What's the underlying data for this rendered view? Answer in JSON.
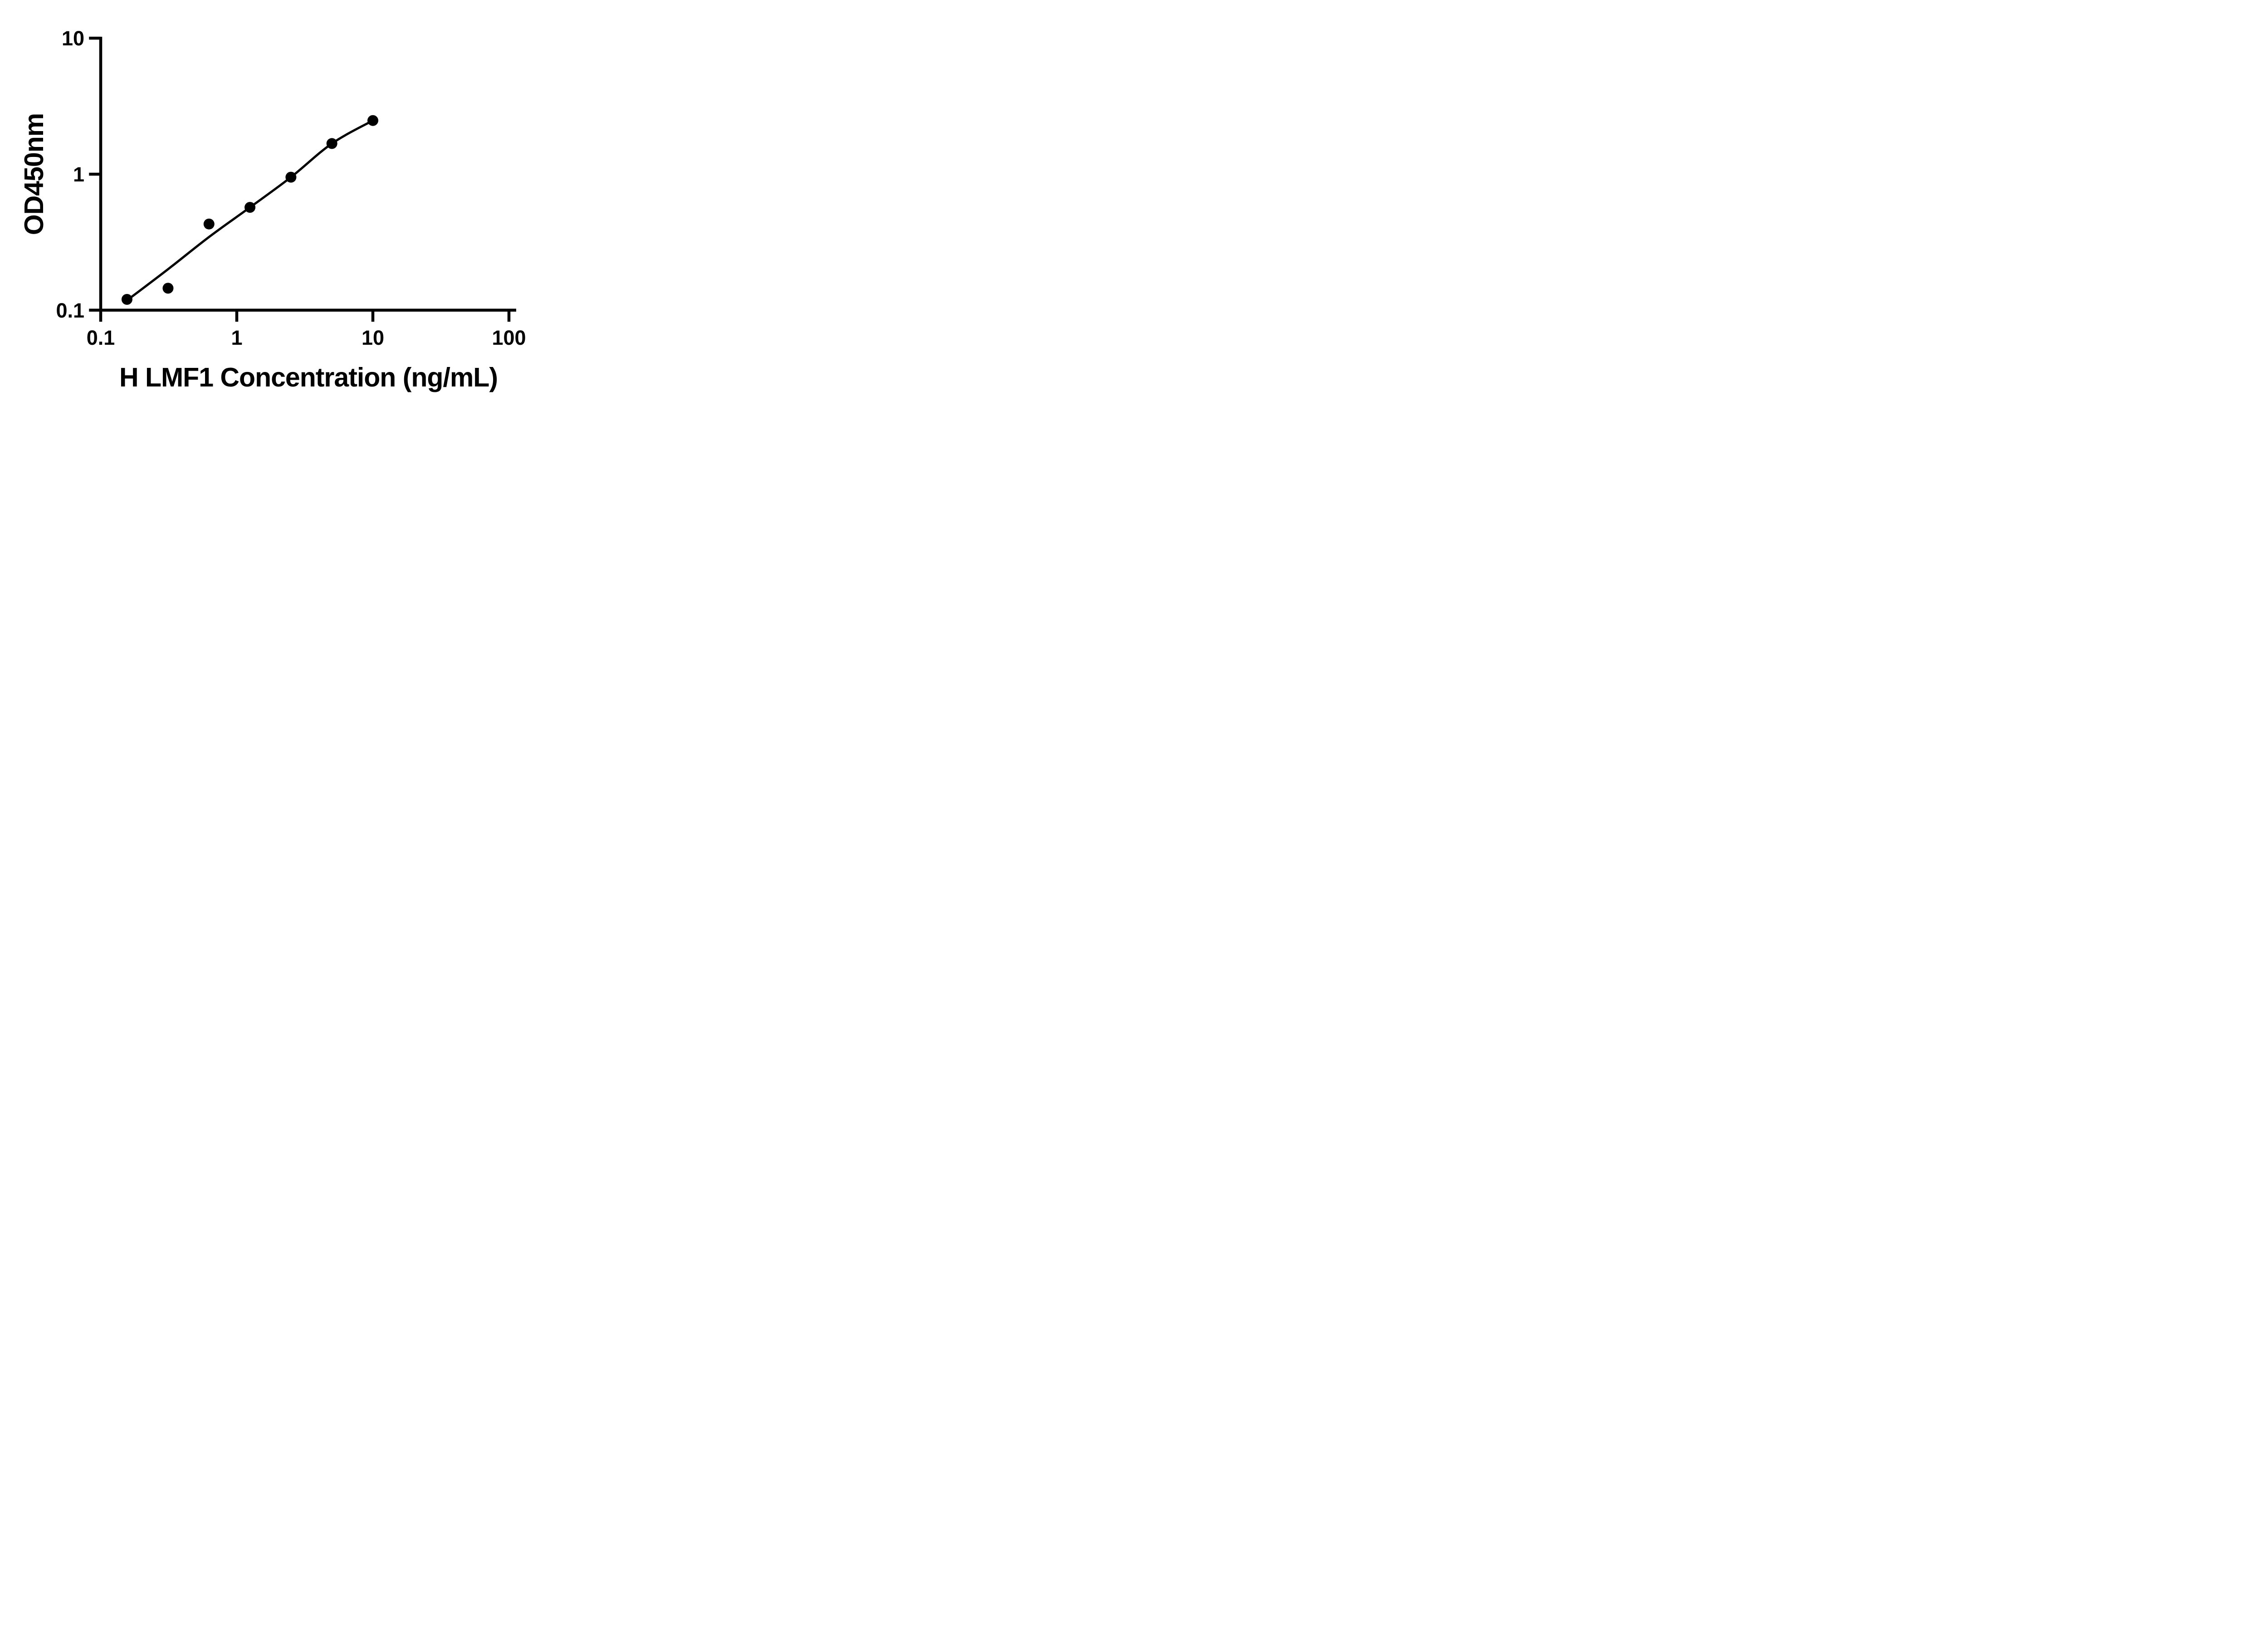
{
  "figure": {
    "background": "#ffffff",
    "ink": "#000000"
  },
  "chart_data": {
    "type": "scatter",
    "title": "",
    "xlabel": "H LMF1 Concentration (ng/mL)",
    "ylabel": "OD450nm",
    "x_scale": "log10",
    "y_scale": "log10",
    "xlim": [
      0.1,
      100
    ],
    "ylim": [
      0.1,
      10
    ],
    "x_ticks": [
      0.1,
      1,
      10,
      100
    ],
    "x_tick_labels": [
      "0.1",
      "1",
      "10",
      "100"
    ],
    "y_ticks": [
      0.1,
      1,
      10
    ],
    "y_tick_labels": [
      "0.1",
      "1",
      "10"
    ],
    "grid": false,
    "legend": null,
    "marker": {
      "shape": "circle",
      "color": "#000000",
      "radius_px": 12
    },
    "points": {
      "x": [
        0.156,
        0.3125,
        0.625,
        1.25,
        2.5,
        5,
        10
      ],
      "y": [
        0.12,
        0.145,
        0.43,
        0.57,
        0.95,
        1.68,
        2.48
      ]
    },
    "fit_curve": [
      [
        0.156,
        0.118
      ],
      [
        0.3125,
        0.2
      ],
      [
        0.625,
        0.345
      ],
      [
        1.25,
        0.57
      ],
      [
        2.5,
        0.95
      ],
      [
        5,
        1.68
      ],
      [
        10,
        2.48
      ]
    ]
  }
}
